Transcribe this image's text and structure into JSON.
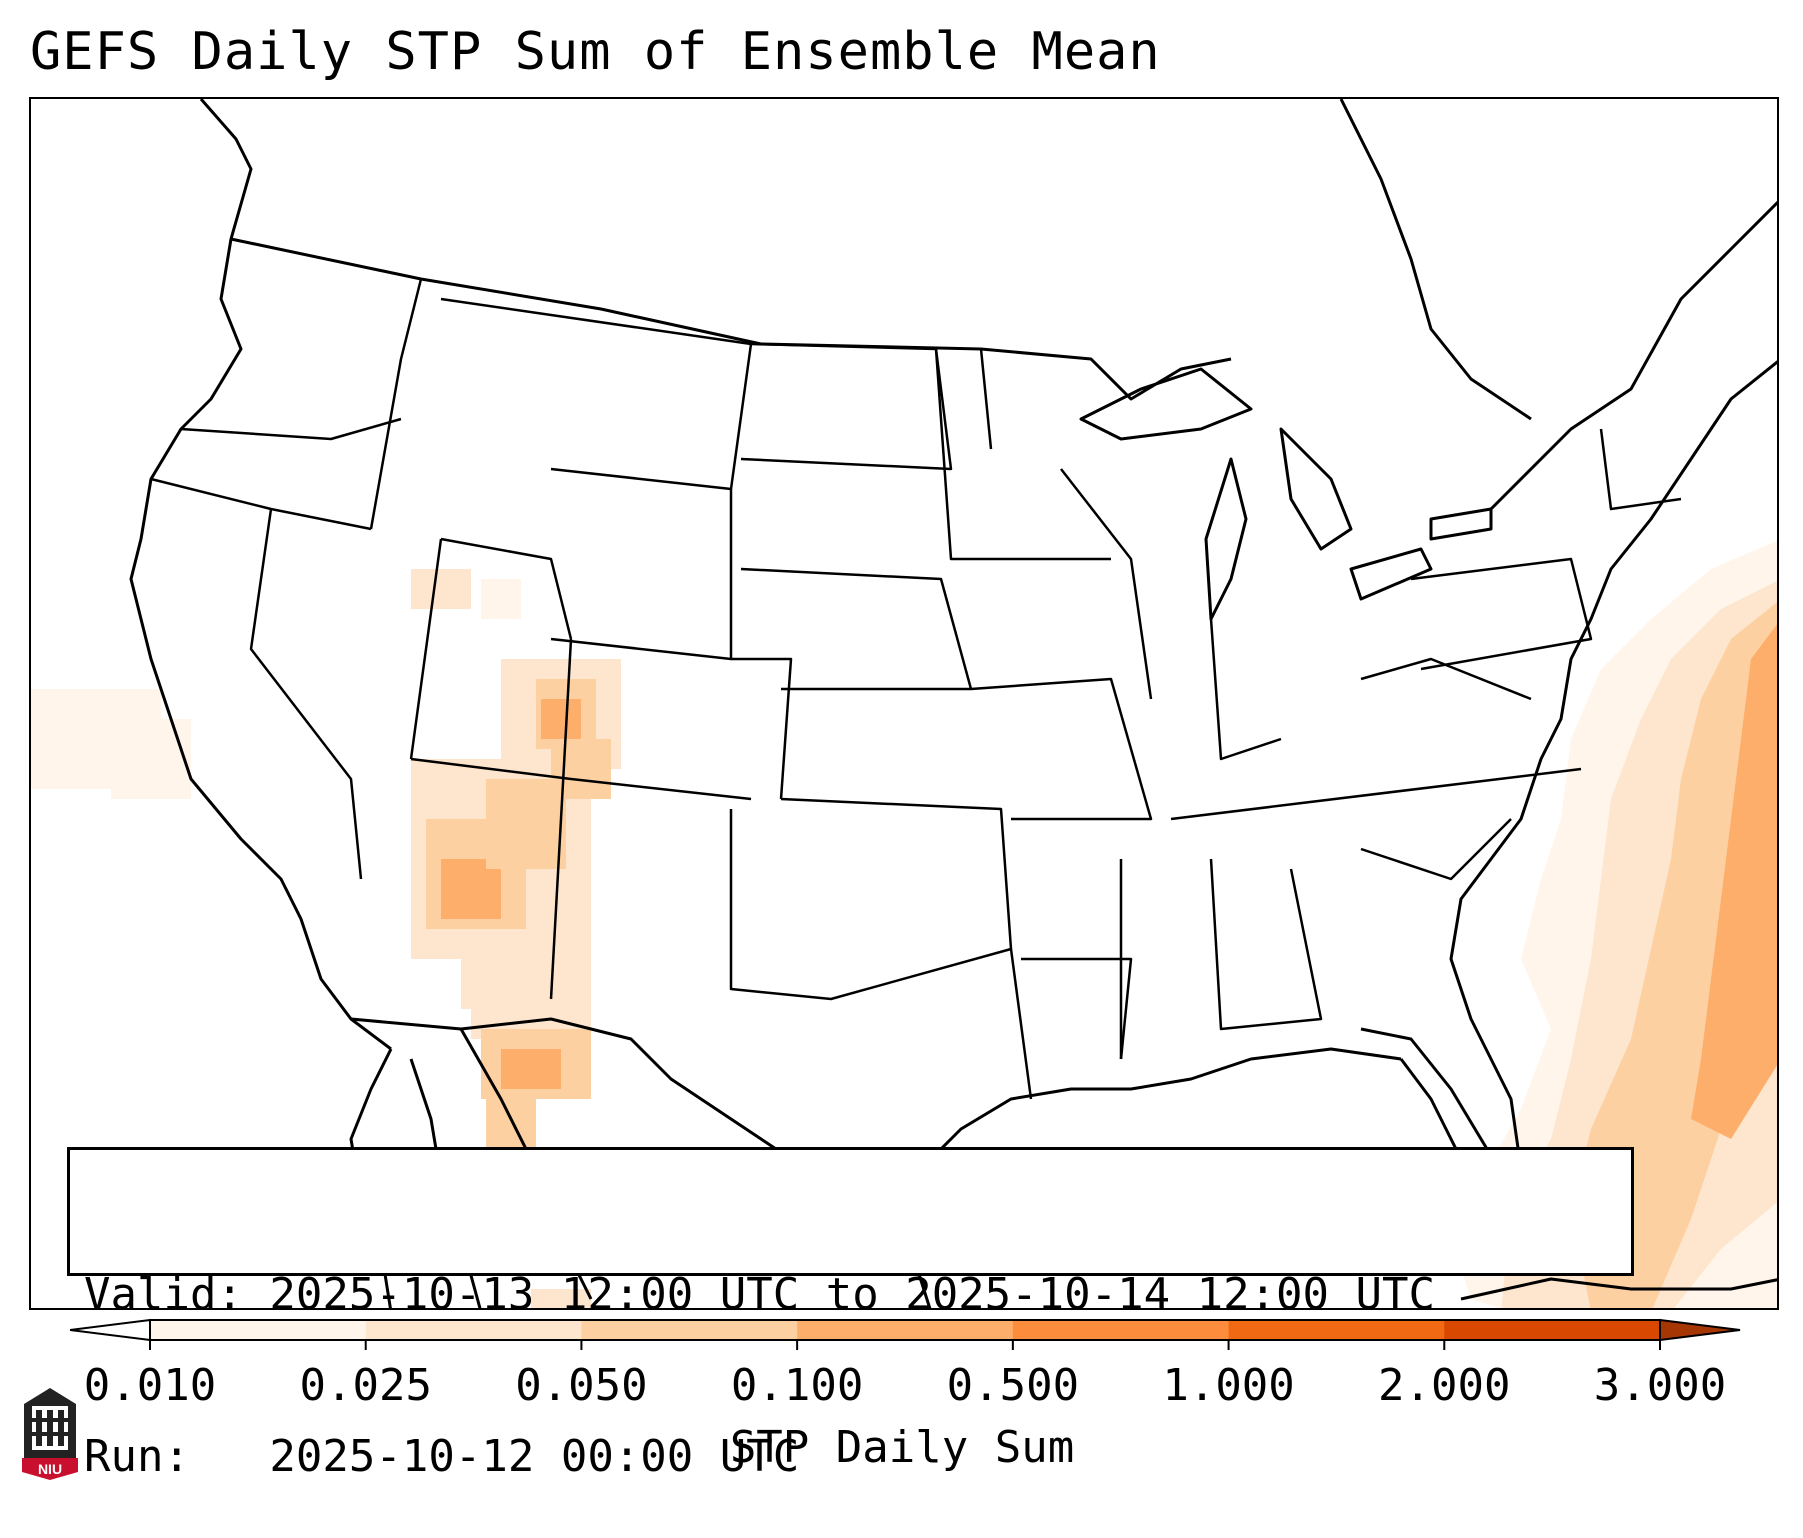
{
  "title": "GEFS Daily STP Sum of Ensemble Mean",
  "info": {
    "valid": "Valid: 2025-10-13 12:00 UTC to 2025-10-14 12:00 UTC",
    "run": "Run:   2025-10-12 00:00 UTC"
  },
  "colorbar": {
    "label": "STP Daily Sum",
    "ticks": [
      "0.010",
      "0.025",
      "0.050",
      "0.100",
      "0.500",
      "1.000",
      "2.000",
      "3.000"
    ],
    "colors": [
      "#fff5eb",
      "#fee6ce",
      "#fdd0a2",
      "#fdae6b",
      "#fd8d3c",
      "#f16913",
      "#d94801",
      "#a63603"
    ],
    "extend": "both"
  },
  "map": {
    "region": "Continental United States",
    "projection": "Lambert Conformal",
    "fill_colors": {
      "lightest": "#fff5eb",
      "light": "#fee6ce",
      "medium": "#fdd0a2",
      "strong": "#fdae6b"
    }
  },
  "logo": {
    "text": "NIU",
    "icon": "niu-castle-logo-icon"
  }
}
